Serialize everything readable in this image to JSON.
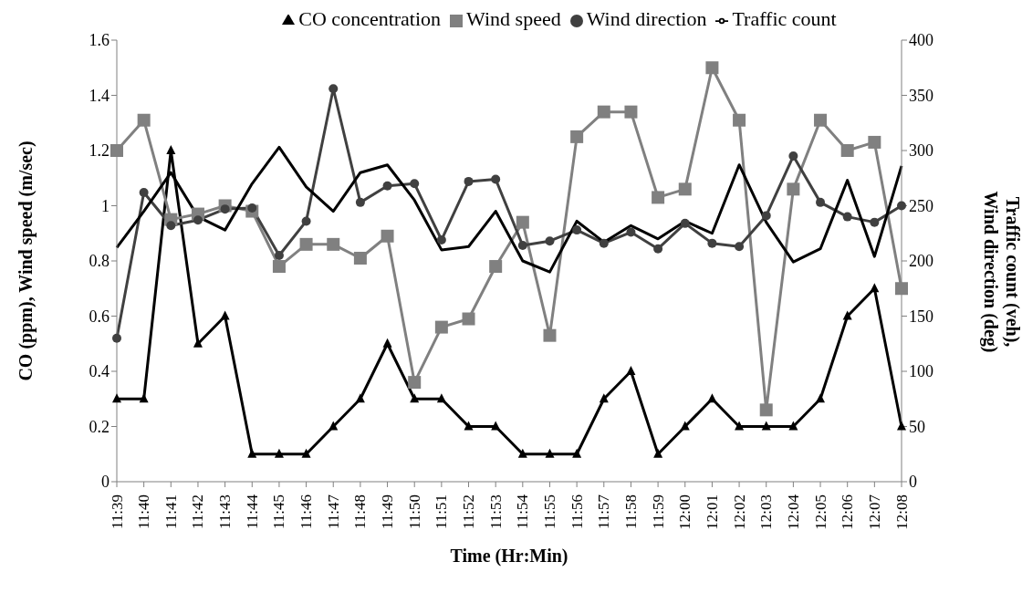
{
  "chart_data": {
    "type": "line",
    "xlabel": "Time (Hr:Min)",
    "ylabel": "CO (ppm), Wind speed (m/sec)",
    "y2label": "Traffic count (veh),\nWind direction (deg)",
    "categories": [
      "11:39",
      "11:40",
      "11:41",
      "11:42",
      "11:43",
      "11:44",
      "11:45",
      "11:46",
      "11:47",
      "11:48",
      "11:49",
      "11:50",
      "11:51",
      "11:52",
      "11:53",
      "11:54",
      "11:55",
      "11:56",
      "11:57",
      "11:58",
      "11:59",
      "12:00",
      "12:01",
      "12:02",
      "12:03",
      "12:04",
      "12:05",
      "12:06",
      "12:07",
      "12:08"
    ],
    "series": [
      {
        "name": "CO concentration",
        "color": "#000000",
        "marker": "triangle",
        "values": [
          0.3,
          0.3,
          1.2,
          0.5,
          0.6,
          0.1,
          0.1,
          0.1,
          0.2,
          0.3,
          0.5,
          0.3,
          0.3,
          0.2,
          0.2,
          0.1,
          0.1,
          0.1,
          0.3,
          0.4,
          0.1,
          0.2,
          0.3,
          0.2,
          0.2,
          0.2,
          0.3,
          0.6,
          0.7,
          0.2
        ]
      },
      {
        "name": "Wind speed",
        "color": "#808080",
        "marker": "square",
        "values": [
          1.2,
          1.31,
          0.95,
          0.97,
          1.0,
          0.98,
          0.78,
          0.86,
          0.86,
          0.81,
          0.89,
          0.36,
          0.56,
          0.59,
          0.78,
          0.94,
          0.53,
          1.25,
          1.34,
          1.34,
          1.03,
          1.06,
          1.5,
          1.31,
          0.26,
          1.06,
          1.31,
          1.2,
          1.23,
          0.7
        ]
      },
      {
        "name": "Wind direction",
        "color": "#404040",
        "marker": "circle",
        "axis": "y2",
        "values": [
          130,
          262,
          232,
          237,
          247,
          248,
          205,
          236,
          356,
          253,
          268,
          270,
          219,
          272,
          274,
          214,
          218,
          228,
          216,
          226,
          211,
          234,
          216,
          213,
          241,
          295,
          253,
          240,
          235,
          250
        ]
      },
      {
        "name": "Traffic count",
        "color": "#000000",
        "marker": "none",
        "axis": "y2",
        "values": [
          212,
          245,
          280,
          240,
          228,
          270,
          303,
          267,
          245,
          280,
          287,
          255,
          210,
          213,
          245,
          200,
          190,
          236,
          217,
          232,
          220,
          236,
          225,
          287,
          235,
          199,
          211,
          273,
          204,
          286
        ]
      }
    ],
    "ylim": [
      0,
      1.6
    ],
    "yticks": [
      0,
      0.2,
      0.4,
      0.6,
      0.8,
      1,
      1.2,
      1.4,
      1.6
    ],
    "y2lim": [
      0,
      400
    ],
    "y2ticks": [
      0,
      50,
      100,
      150,
      200,
      250,
      300,
      350,
      400
    ],
    "grid": false,
    "legend": "top",
    "line_style": "solid"
  }
}
